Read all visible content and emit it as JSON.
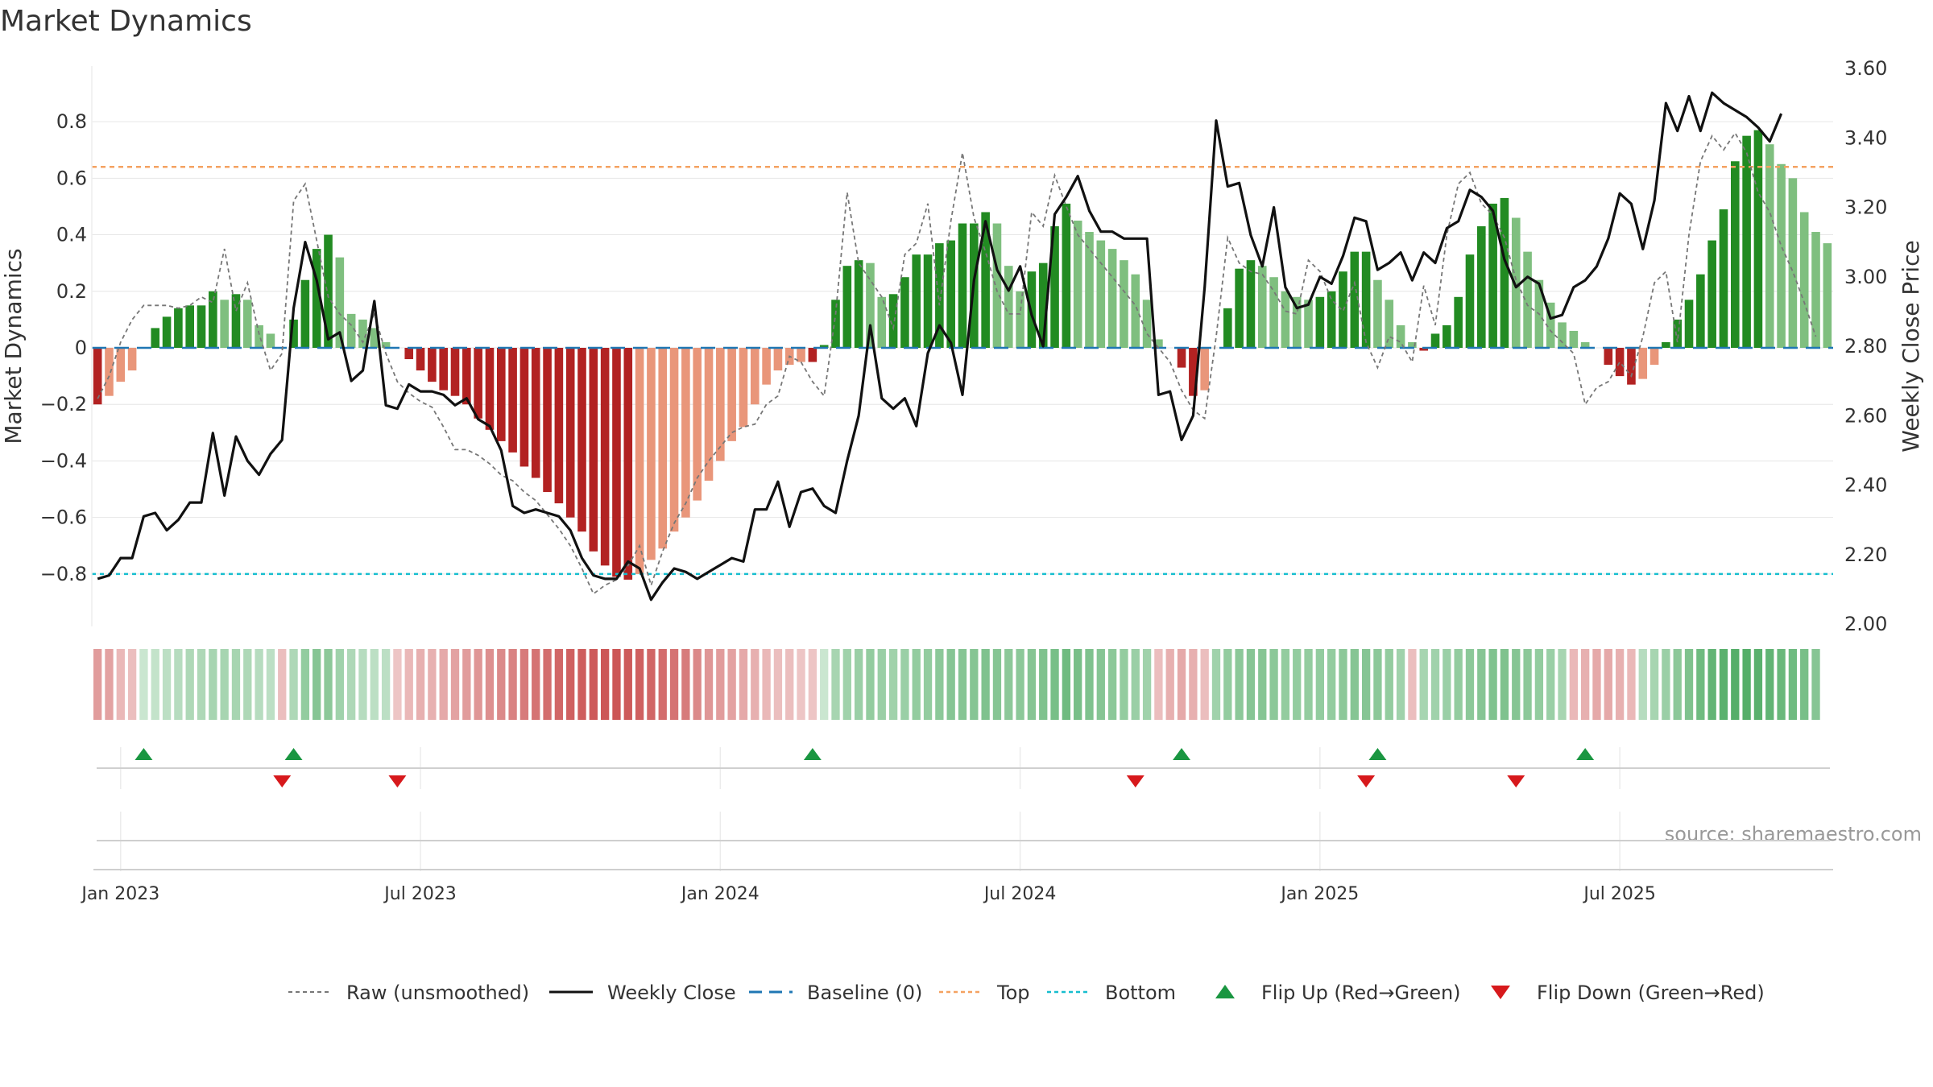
{
  "chart_data": {
    "type": "bar",
    "title": "Market Dynamics",
    "ylabel_left": "Market Dynamics",
    "ylabel_right": "Weekly Close Price",
    "xlabel": "",
    "source": "source: sharemaestro.com",
    "ylim_left": [
      -0.9,
      0.9
    ],
    "ylim_right": [
      2.0,
      3.6
    ],
    "yticks_left": [
      -0.8,
      -0.6,
      -0.4,
      -0.2,
      0.0,
      0.2,
      0.4,
      0.6,
      0.8
    ],
    "yticks_left_labels": [
      "−0.8",
      "−0.6",
      "−0.4",
      "−0.2",
      "0",
      "0.2",
      "0.4",
      "0.6",
      "0.8"
    ],
    "yticks_right": [
      2.0,
      2.2,
      2.4,
      2.6,
      2.8,
      3.0,
      3.2,
      3.4,
      3.6
    ],
    "yticks_right_labels": [
      "2.00",
      "2.20",
      "2.40",
      "2.60",
      "2.80",
      "3.00",
      "3.20",
      "3.40",
      "3.60"
    ],
    "x_ticks": [
      {
        "week": 2,
        "label": "Jan 2023"
      },
      {
        "week": 28,
        "label": "Jul 2023"
      },
      {
        "week": 54,
        "label": "Jan 2024"
      },
      {
        "week": 80,
        "label": "Jul 2024"
      },
      {
        "week": 106,
        "label": "Jan 2025"
      },
      {
        "week": 132,
        "label": "Jul 2025"
      }
    ],
    "top_level": 0.64,
    "bottom_level": -0.8,
    "baseline_level": 0,
    "colors": {
      "strong_up": "#228b22",
      "weak_up": "#7fbf7f",
      "strong_down": "#b22222",
      "weak_down": "#e9967a",
      "close_line": "#111111",
      "raw_line": "#777777",
      "baseline": "#1f77b4",
      "top": "#f4a261",
      "bottom": "#17becf",
      "flip_up": "#1a9641",
      "flip_down": "#d7191c"
    },
    "momentum": [
      -0.2,
      -0.17,
      -0.12,
      -0.08,
      0,
      0.07,
      0.11,
      0.14,
      0.15,
      0.15,
      0.2,
      0.17,
      0.19,
      0.17,
      0.08,
      0.05,
      0,
      0.1,
      0.24,
      0.35,
      0.4,
      0.32,
      0.12,
      0.1,
      0.07,
      0.02,
      0,
      -0.04,
      -0.08,
      -0.12,
      -0.15,
      -0.17,
      -0.2,
      -0.25,
      -0.29,
      -0.33,
      -0.37,
      -0.42,
      -0.46,
      -0.51,
      -0.55,
      -0.6,
      -0.65,
      -0.72,
      -0.77,
      -0.81,
      -0.82,
      -0.8,
      -0.75,
      -0.71,
      -0.65,
      -0.6,
      -0.54,
      -0.47,
      -0.4,
      -0.33,
      -0.28,
      -0.2,
      -0.13,
      -0.08,
      -0.06,
      -0.05,
      -0.05,
      0.01,
      0.17,
      0.29,
      0.31,
      0.3,
      0.18,
      0.19,
      0.25,
      0.33,
      0.33,
      0.37,
      0.38,
      0.44,
      0.44,
      0.48,
      0.44,
      0.29,
      0.2,
      0.27,
      0.3,
      0.43,
      0.51,
      0.45,
      0.41,
      0.38,
      0.35,
      0.31,
      0.26,
      0.17,
      0.03,
      0,
      -0.07,
      -0.17,
      -0.15,
      0,
      0.14,
      0.28,
      0.31,
      0.29,
      0.25,
      0.2,
      0.18,
      0.17,
      0.18,
      0.2,
      0.27,
      0.34,
      0.34,
      0.24,
      0.17,
      0.08,
      0.02,
      -0.01,
      0.05,
      0.08,
      0.18,
      0.33,
      0.43,
      0.51,
      0.53,
      0.46,
      0.34,
      0.24,
      0.16,
      0.09,
      0.06,
      0.02,
      0,
      -0.06,
      -0.1,
      -0.13,
      -0.11,
      -0.06,
      0.02,
      0.1,
      0.17,
      0.26,
      0.38,
      0.49,
      0.66,
      0.75,
      0.77,
      0.72,
      0.65,
      0.6,
      0.48,
      0.41,
      0.37
    ],
    "raw": [
      -0.18,
      -0.1,
      0.02,
      0.1,
      0.15,
      0.15,
      0.15,
      0.14,
      0.15,
      0.18,
      0.16,
      0.35,
      0.13,
      0.23,
      0.05,
      -0.08,
      -0.02,
      0.52,
      0.58,
      0.38,
      0.18,
      0.12,
      0.08,
      0.02,
      0.12,
      -0.02,
      -0.12,
      -0.16,
      -0.19,
      -0.21,
      -0.28,
      -0.36,
      -0.36,
      -0.38,
      -0.41,
      -0.45,
      -0.47,
      -0.51,
      -0.54,
      -0.59,
      -0.64,
      -0.7,
      -0.78,
      -0.87,
      -0.84,
      -0.82,
      -0.77,
      -0.7,
      -0.84,
      -0.72,
      -0.62,
      -0.55,
      -0.46,
      -0.4,
      -0.35,
      -0.3,
      -0.28,
      -0.27,
      -0.2,
      -0.17,
      -0.03,
      -0.05,
      -0.12,
      -0.17,
      0.12,
      0.55,
      0.3,
      0.24,
      0.18,
      0.07,
      0.33,
      0.37,
      0.51,
      0.15,
      0.45,
      0.69,
      0.46,
      0.34,
      0.2,
      0.12,
      0.12,
      0.48,
      0.43,
      0.61,
      0.5,
      0.4,
      0.35,
      0.3,
      0.25,
      0.2,
      0.15,
      0.05,
      0,
      -0.05,
      -0.15,
      -0.22,
      -0.25,
      0.04,
      0.39,
      0.3,
      0.27,
      0.26,
      0.2,
      0.13,
      0.12,
      0.31,
      0.27,
      0.17,
      0.13,
      0.23,
      0.02,
      -0.07,
      0.04,
      0.02,
      -0.05,
      0.22,
      0.08,
      0.4,
      0.58,
      0.62,
      0.51,
      0.47,
      0.39,
      0.24,
      0.15,
      0.12,
      0.06,
      0.02,
      -0.02,
      -0.2,
      -0.14,
      -0.12,
      -0.05,
      -0.1,
      0.04,
      0.23,
      0.27,
      0.02,
      0.4,
      0.66,
      0.75,
      0.7,
      0.76,
      0.69,
      0.55,
      0.48,
      0.36,
      0.27,
      0.16,
      0.04
    ],
    "close": [
      2.13,
      2.14,
      2.19,
      2.19,
      2.31,
      2.32,
      2.27,
      2.3,
      2.35,
      2.35,
      2.55,
      2.37,
      2.54,
      2.47,
      2.43,
      2.49,
      2.53,
      2.91,
      3.1,
      2.99,
      2.82,
      2.84,
      2.7,
      2.73,
      2.93,
      2.63,
      2.62,
      2.69,
      2.67,
      2.67,
      2.66,
      2.63,
      2.65,
      2.59,
      2.57,
      2.5,
      2.34,
      2.32,
      2.33,
      2.32,
      2.31,
      2.27,
      2.19,
      2.14,
      2.13,
      2.13,
      2.18,
      2.16,
      2.07,
      2.12,
      2.16,
      2.15,
      2.13,
      2.15,
      2.17,
      2.19,
      2.18,
      2.33,
      2.33,
      2.41,
      2.28,
      2.38,
      2.39,
      2.34,
      2.32,
      2.47,
      2.6,
      2.86,
      2.65,
      2.62,
      2.65,
      2.57,
      2.78,
      2.86,
      2.81,
      2.66,
      2.99,
      3.16,
      3.02,
      2.96,
      3.03,
      2.89,
      2.8,
      3.18,
      3.23,
      3.29,
      3.19,
      3.13,
      3.13,
      3.11,
      3.11,
      3.11,
      2.66,
      2.67,
      2.53,
      2.6,
      2.97,
      3.45,
      3.26,
      3.27,
      3.12,
      3.03,
      3.2,
      2.97,
      2.91,
      2.92,
      3.0,
      2.98,
      3.06,
      3.17,
      3.16,
      3.02,
      3.04,
      3.07,
      2.99,
      3.07,
      3.04,
      3.14,
      3.16,
      3.25,
      3.23,
      3.19,
      3.05,
      2.97,
      3.0,
      2.98,
      2.88,
      2.89,
      2.97,
      2.99,
      3.03,
      3.11,
      3.24,
      3.21,
      3.08,
      3.22,
      3.5,
      3.42,
      3.52,
      3.42,
      3.53,
      3.5,
      3.48,
      3.46,
      3.43,
      3.39,
      3.47
    ],
    "regime_strip": [
      -0.45,
      -0.4,
      -0.25,
      -0.2,
      0.1,
      0.15,
      0.2,
      0.25,
      0.3,
      0.3,
      0.35,
      0.35,
      0.35,
      0.3,
      0.25,
      0.2,
      -0.2,
      0.3,
      0.5,
      0.6,
      0.55,
      0.4,
      0.3,
      0.25,
      0.2,
      0.2,
      -0.15,
      -0.25,
      -0.3,
      -0.3,
      -0.35,
      -0.4,
      -0.45,
      -0.5,
      -0.55,
      -0.6,
      -0.65,
      -0.7,
      -0.75,
      -0.8,
      -0.85,
      -0.9,
      -0.92,
      -0.95,
      -0.97,
      -0.98,
      -0.95,
      -0.9,
      -0.85,
      -0.8,
      -0.75,
      -0.7,
      -0.6,
      -0.5,
      -0.45,
      -0.4,
      -0.35,
      -0.3,
      -0.25,
      -0.2,
      -0.2,
      -0.15,
      -0.15,
      0.1,
      0.35,
      0.4,
      0.45,
      0.5,
      0.45,
      0.4,
      0.45,
      0.5,
      0.5,
      0.55,
      0.6,
      0.6,
      0.6,
      0.65,
      0.6,
      0.55,
      0.55,
      0.6,
      0.65,
      0.7,
      0.75,
      0.7,
      0.65,
      0.6,
      0.55,
      0.5,
      0.45,
      0.4,
      -0.2,
      -0.3,
      -0.35,
      -0.3,
      -0.2,
      0.4,
      0.5,
      0.55,
      0.6,
      0.6,
      0.55,
      0.5,
      0.5,
      0.5,
      0.5,
      0.5,
      0.55,
      0.6,
      0.6,
      0.55,
      0.5,
      0.4,
      -0.2,
      0.35,
      0.4,
      0.45,
      0.5,
      0.55,
      0.6,
      0.65,
      0.65,
      0.6,
      0.55,
      0.5,
      0.45,
      0.35,
      -0.25,
      -0.3,
      -0.35,
      -0.35,
      -0.3,
      -0.25,
      0.25,
      0.35,
      0.45,
      0.55,
      0.65,
      0.75,
      0.85,
      0.9,
      0.95,
      0.95,
      0.9,
      0.85,
      0.8,
      0.75,
      0.7,
      0.6
    ],
    "flips_up": [
      4,
      17,
      62,
      94,
      111,
      129
    ],
    "flips_down": [
      16,
      26,
      90,
      110,
      123
    ]
  },
  "legend": [
    {
      "key": "raw",
      "label": "Raw (unsmoothed)"
    },
    {
      "key": "close",
      "label": "Weekly Close"
    },
    {
      "key": "baseline",
      "label": "Baseline (0)"
    },
    {
      "key": "top",
      "label": "Top"
    },
    {
      "key": "bottom",
      "label": "Bottom"
    },
    {
      "key": "flip_up",
      "label": "Flip Up (Red→Green)"
    },
    {
      "key": "flip_down",
      "label": "Flip Down (Green→Red)"
    }
  ]
}
